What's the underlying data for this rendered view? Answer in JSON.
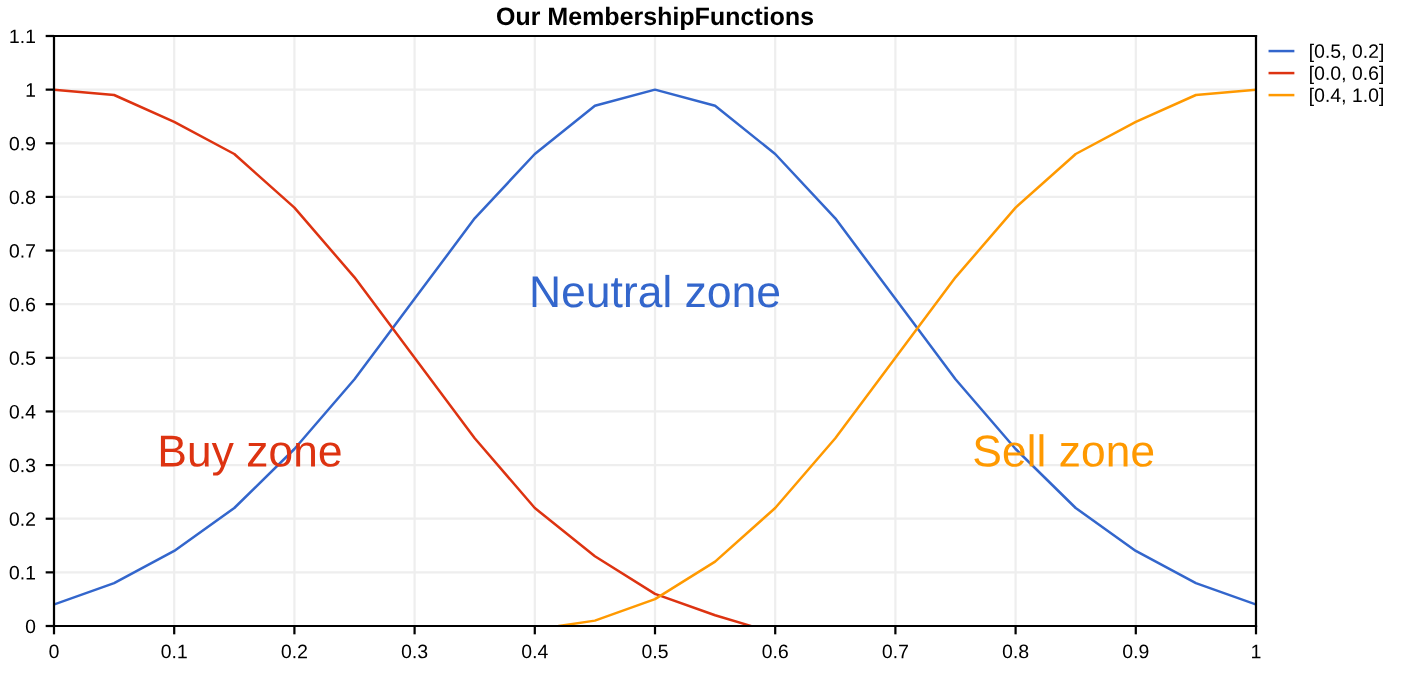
{
  "chart_data": {
    "type": "line",
    "title": "Our MembershipFunctions",
    "series": [
      {
        "name": "[0.5, 0.2]",
        "color": "#3366cc",
        "x": [
          0,
          0.05,
          0.1,
          0.15,
          0.2,
          0.25,
          0.3,
          0.35,
          0.4,
          0.45,
          0.5,
          0.55,
          0.6,
          0.65,
          0.7,
          0.75,
          0.8,
          0.85,
          0.9,
          0.95,
          1
        ],
        "values": [
          0.04,
          0.08,
          0.14,
          0.22,
          0.33,
          0.46,
          0.61,
          0.76,
          0.88,
          0.97,
          1,
          0.97,
          0.88,
          0.76,
          0.61,
          0.46,
          0.33,
          0.22,
          0.14,
          0.08,
          0.04
        ]
      },
      {
        "name": "[0.0, 0.6]",
        "color": "#dd3311",
        "x": [
          0,
          0.05,
          0.1,
          0.15,
          0.2,
          0.25,
          0.3,
          0.35,
          0.4,
          0.45,
          0.5,
          0.55,
          0.58
        ],
        "values": [
          1,
          0.99,
          0.94,
          0.88,
          0.78,
          0.65,
          0.5,
          0.35,
          0.22,
          0.13,
          0.06,
          0.02,
          0
        ]
      },
      {
        "name": "[0.4, 1.0]",
        "color": "#ff9900",
        "x": [
          0.42,
          0.45,
          0.5,
          0.55,
          0.6,
          0.65,
          0.7,
          0.75,
          0.8,
          0.85,
          0.9,
          0.95,
          1
        ],
        "values": [
          0,
          0.01,
          0.05,
          0.12,
          0.22,
          0.35,
          0.5,
          0.65,
          0.78,
          0.88,
          0.94,
          0.99,
          1
        ]
      }
    ],
    "annotations": [
      "Buy zone",
      "Neutral zone",
      "Sell zone"
    ],
    "xlim": [
      0,
      1
    ],
    "ylim": [
      0,
      1.1
    ],
    "xticks": [
      {
        "value": 0,
        "label": "0"
      },
      0.1,
      0.2,
      0.3,
      0.4,
      0.5,
      0.6,
      0.7,
      0.8,
      0.9,
      {
        "value": 1,
        "label": "1"
      }
    ],
    "yticks": [
      {
        "value": 0,
        "label": "0"
      },
      0.1,
      0.2,
      0.3,
      0.4,
      0.5,
      0.6,
      0.7,
      0.8,
      0.9,
      {
        "value": 1,
        "label": "1"
      },
      1.1
    ],
    "grid": true,
    "legend": "top right",
    "marker": "none",
    "line_style": "solid"
  }
}
